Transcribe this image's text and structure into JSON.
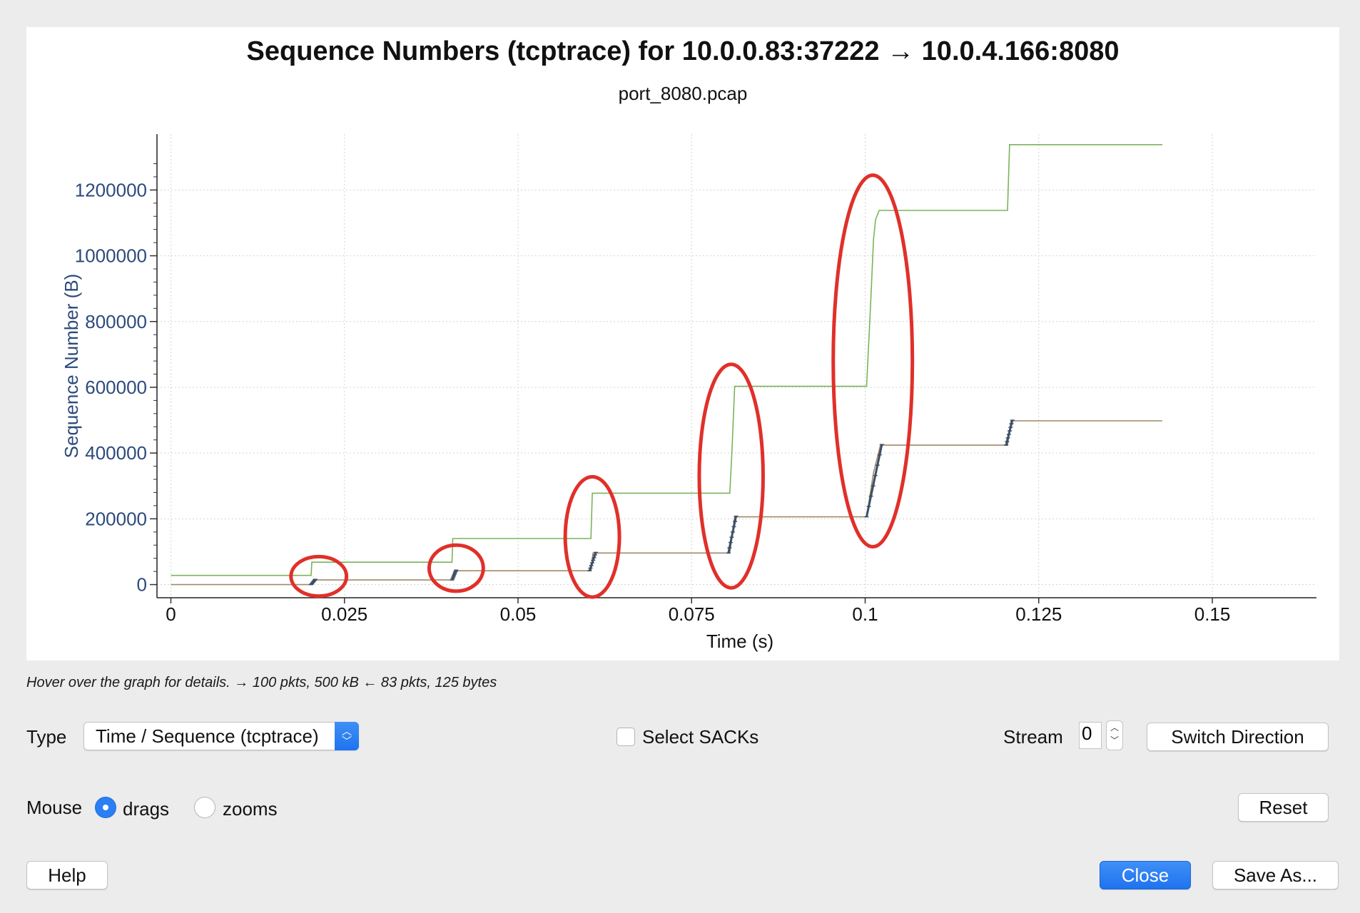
{
  "graph": {
    "title": "Sequence Numbers (tcptrace) for 10.0.0.83:37222 → 10.0.4.166:8080",
    "subtitle": "port_8080.pcap"
  },
  "chart_data": {
    "type": "line",
    "title": "Sequence Numbers (tcptrace) for 10.0.0.83:37222 → 10.0.4.166:8080",
    "subtitle": "port_8080.pcap",
    "xlabel": "Time (s)",
    "ylabel": "Sequence Number (B)",
    "xlim": [
      -0.002,
      0.165
    ],
    "ylim": [
      -40000,
      1370000
    ],
    "xticks": [
      0,
      0.025,
      0.05,
      0.075,
      0.1,
      0.125,
      0.15
    ],
    "xtick_labels": [
      "0",
      "0.025",
      "0.05",
      "0.075",
      "0.1",
      "0.125",
      "0.15"
    ],
    "yticks": [
      0,
      200000,
      400000,
      600000,
      800000,
      1000000,
      1200000
    ],
    "ytick_labels": [
      "0",
      "200000",
      "400000",
      "600000",
      "800000",
      "1000000",
      "1200000"
    ],
    "grid": true,
    "series": [
      {
        "color": "#7cb35a",
        "x": [
          0,
          0.0202,
          0.0203,
          0.0405,
          0.0406,
          0.0605,
          0.0607,
          0.0805,
          0.0808,
          0.0812,
          0.1002,
          0.1008,
          0.1012,
          0.1015,
          0.102,
          0.1205,
          0.1208,
          0.1428
        ],
        "y": [
          28000,
          28000,
          68000,
          68000,
          140000,
          140000,
          278000,
          278000,
          400000,
          603000,
          603000,
          860000,
          1050000,
          1110000,
          1138000,
          1138000,
          1338000,
          1338000
        ]
      },
      {
        "color": "#a08a6a",
        "x": [
          0,
          0.0202,
          0.0205,
          0.0405,
          0.0408,
          0.0605,
          0.0608,
          0.0805,
          0.0812,
          0.1002,
          0.1012,
          0.1022,
          0.1205,
          0.121,
          0.1428
        ],
        "y": [
          0,
          0,
          14000,
          14000,
          42000,
          42000,
          96000,
          96000,
          206000,
          206000,
          340000,
          424000,
          424000,
          498000,
          498000
        ]
      }
    ],
    "segments": [
      {
        "x_start": 0.0202,
        "x_end": 0.0208,
        "y_start": 0,
        "y_end": 16000
      },
      {
        "x_start": 0.0405,
        "x_end": 0.0411,
        "y_start": 14000,
        "y_end": 44000
      },
      {
        "x_start": 0.0603,
        "x_end": 0.0612,
        "y_start": 42000,
        "y_end": 98000
      },
      {
        "x_start": 0.0803,
        "x_end": 0.0814,
        "y_start": 96000,
        "y_end": 208000
      },
      {
        "x_start": 0.1002,
        "x_end": 0.1024,
        "y_start": 206000,
        "y_end": 426000
      },
      {
        "x_start": 0.1203,
        "x_end": 0.1212,
        "y_start": 424000,
        "y_end": 500000
      }
    ],
    "highlights": [
      {
        "cx": 0.0213,
        "cy": 25000,
        "rx": 0.004,
        "ry": 60000
      },
      {
        "cx": 0.0411,
        "cy": 50000,
        "rx": 0.0039,
        "ry": 70000
      },
      {
        "cx": 0.0607,
        "cy": 145000,
        "rx": 0.0039,
        "ry": 183000
      },
      {
        "cx": 0.0807,
        "cy": 330000,
        "rx": 0.0046,
        "ry": 340000
      },
      {
        "cx": 0.1011,
        "cy": 680000,
        "rx": 0.0057,
        "ry": 565000
      }
    ],
    "highlight_color": "#e0302a"
  },
  "status_hint": "Hover over the graph for details. → 100 pkts, 500 kB ← 83 pkts, 125 bytes",
  "controls": {
    "type_label": "Type",
    "type_value": "Time / Sequence (tcptrace)",
    "select_sacks_label": "Select SACKs",
    "stream_label": "Stream",
    "stream_value": "0",
    "switch_direction": "Switch Direction",
    "mouse_label": "Mouse",
    "drags_label": "drags",
    "zooms_label": "zooms",
    "reset": "Reset",
    "help": "Help",
    "close": "Close",
    "save_as": "Save As..."
  },
  "colors": {
    "accent": "#2b7ff2",
    "axis_text": "#2c4a7c"
  }
}
